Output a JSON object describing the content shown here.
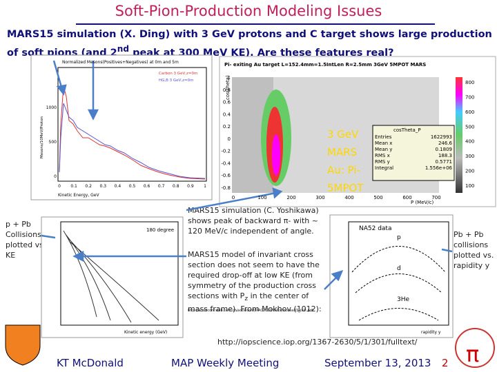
{
  "title": "Soft-Pion-Production Modeling Issues",
  "intro": {
    "before": "MARS15 simulation (X. Ding) with 3 GeV protons and C target shows large production of soft pions (and 2",
    "sup": "nd",
    "after": " peak at 300 MeV KE).   Are these features real?"
  },
  "plot1": {
    "title": "Normalized Mesons(Positives+Negatives) at 0m and 5m",
    "legend": [
      "Carbon 3 GeV,z=0m",
      "HG,B 3 GeV,z=0m"
    ],
    "ylabel": "Mesons/10MeV/Proton",
    "xlabel": "Kinetic Energy, GeV",
    "yticks": [
      "1000",
      "500",
      "0"
    ],
    "xticks": [
      "0",
      "0.1",
      "0.2",
      "0.3",
      "0.4",
      "0.5",
      "0.6",
      "0.7",
      "0.8",
      "0.9",
      "1"
    ]
  },
  "plot2": {
    "title": "Pi- exiting Au target L=152.4mm=1.5IntLen R=2.5mm 3GeV 5MPOT MARS",
    "ylabel": "cos(theta)",
    "xlabel": "P (MeV/c)",
    "yticks": [
      "1",
      "0.8",
      "0.6",
      "0.4",
      "0.2",
      "0",
      "-0.2",
      "-0.4",
      "-0.6",
      "-0.8"
    ],
    "xticks": [
      "0",
      "100",
      "200",
      "300",
      "400",
      "500",
      "600",
      "700"
    ],
    "zticks": [
      "800",
      "700",
      "600",
      "500",
      "400",
      "300",
      "200",
      "100"
    ],
    "overlay": [
      "3 GeV",
      "MARS",
      "Au: Pi-",
      "5MPOT"
    ],
    "stats": {
      "name": "cosTheta_P",
      "rows": [
        [
          "Entries",
          "1622993"
        ],
        [
          "Mean x",
          "246.6"
        ],
        [
          "Mean y",
          "0.1809"
        ],
        [
          "RMS x",
          "188.3"
        ],
        [
          "RMS y",
          "0.5771"
        ],
        [
          "Integral",
          "1.556e+06"
        ]
      ]
    }
  },
  "left_note": "p + Pb Collisions plotted vs. KE",
  "middle_note1": "MARS15 simulation (C. Yoshikawa) shows peak of backward π- with ~ 120 MeV/c independent of angle.",
  "p_label": "P",
  "middle_note2": {
    "before": "MARS15 model of invariant cross section does not seem to have the required drop-off at low KE (from symmetry of the production cross sections with P",
    "sub": "z",
    "after": " in the center of mass frame).  From Mokhov (1012):"
  },
  "mokhov_url": "http://accelconf.web.cern.ch/accelconf/IPAC2012/talks/moxaa03_talk.pdf",
  "plot3": {
    "label": "180 degree",
    "xlabel": "Kinetic energy (GeV)"
  },
  "plot4": {
    "label": "NA52 data",
    "species": [
      "p",
      "d",
      "3He"
    ],
    "xlabel": "rapidity y"
  },
  "right_note": "Pb + Pb collisions plotted vs. rapidity y",
  "url": "http://iopscience.iop.org/1367-2630/5/1/301/fulltext/",
  "footer": {
    "author": "KT McDonald",
    "meeting": "MAP Weekly Meeting",
    "date": "September 13, 2013",
    "page": "2"
  }
}
